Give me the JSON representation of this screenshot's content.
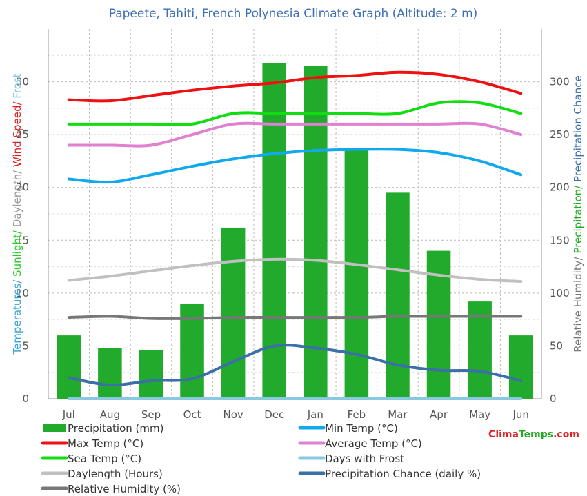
{
  "chart_data": {
    "type": "bar",
    "title": "Papeete, Tahiti, French Polynesia Climate Graph (Altitude: 2 m)",
    "categories": [
      "Jul",
      "Aug",
      "Sep",
      "Oct",
      "Nov",
      "Dec",
      "Jan",
      "Feb",
      "Mar",
      "Apr",
      "May",
      "Jun"
    ],
    "left_axis": {
      "label_parts": [
        {
          "text": "Temperatures/ ",
          "color": "#3aa3d8"
        },
        {
          "text": "Sunlight/ ",
          "color": "#22cc22"
        },
        {
          "text": "Daylength/ ",
          "color": "#999999"
        },
        {
          "text": "Wind Speed/ ",
          "color": "#dd2222"
        },
        {
          "text": "Frost",
          "color": "#88c8e0"
        }
      ],
      "ylim": [
        0,
        35
      ],
      "ticks": [
        0,
        5,
        10,
        15,
        20,
        25,
        30
      ]
    },
    "right_axis": {
      "label_parts": [
        {
          "text": "Relative Humidity/ ",
          "color": "#777777"
        },
        {
          "text": "Precipitation/ ",
          "color": "#22aa22"
        },
        {
          "text": "Precipitation Chance",
          "color": "#3a6fa8"
        }
      ],
      "ylim": [
        0,
        350
      ],
      "ticks": [
        0,
        50,
        100,
        150,
        200,
        250,
        300
      ]
    },
    "bars": {
      "name": "Precipitation (mm)",
      "color": "#22aa2c",
      "values": [
        60,
        48,
        46,
        90,
        162,
        318,
        315,
        235,
        195,
        140,
        92,
        60
      ]
    },
    "series": [
      {
        "name": "Max Temp (°C)",
        "color": "#ee1111",
        "axis": "left",
        "values": [
          28.3,
          28.2,
          28.7,
          29.2,
          29.6,
          29.9,
          30.4,
          30.6,
          30.9,
          30.7,
          30.0,
          28.9
        ]
      },
      {
        "name": "Sea Temp (°C)",
        "color": "#11dd11",
        "axis": "left",
        "values": [
          26,
          26,
          26,
          26,
          27,
          27,
          27,
          27,
          27,
          28,
          28,
          27
        ]
      },
      {
        "name": "Average Temp (°C)",
        "color": "#e080d0",
        "axis": "left",
        "values": [
          24,
          24,
          24,
          25,
          26,
          26,
          26,
          26,
          26,
          26,
          26,
          25
        ]
      },
      {
        "name": "Min Temp (°C)",
        "color": "#11a8ee",
        "axis": "left",
        "values": [
          20.8,
          20.5,
          21.2,
          22.0,
          22.7,
          23.2,
          23.5,
          23.6,
          23.6,
          23.3,
          22.5,
          21.2
        ]
      },
      {
        "name": "Daylength (Hours)",
        "color": "#c0c0c0",
        "axis": "left",
        "values": [
          11.2,
          11.6,
          12.1,
          12.6,
          13.0,
          13.2,
          13.1,
          12.7,
          12.2,
          11.7,
          11.3,
          11.1
        ]
      },
      {
        "name": "Relative Humidity (%)",
        "color": "#777777",
        "axis": "right",
        "values": [
          77,
          78,
          76,
          76,
          77,
          77,
          77,
          77,
          78,
          78,
          78,
          78
        ]
      },
      {
        "name": "Precipitation Chance (daily %)",
        "color": "#3a6fa8",
        "axis": "right",
        "values": [
          20,
          13,
          17,
          19,
          35,
          50,
          48,
          42,
          32,
          27,
          26,
          17
        ]
      },
      {
        "name": "Days with Frost",
        "color": "#88c8e0",
        "axis": "left",
        "values": [
          0,
          0,
          0,
          0,
          0,
          0,
          0,
          0,
          0,
          0,
          0,
          0
        ]
      }
    ],
    "legend": [
      {
        "label": "Precipitation (mm)",
        "color": "#22aa2c",
        "kind": "bar"
      },
      {
        "label": "Min Temp (°C)",
        "color": "#11a8ee",
        "kind": "line"
      },
      {
        "label": "Max Temp (°C)",
        "color": "#ee1111",
        "kind": "line"
      },
      {
        "label": "Average Temp (°C)",
        "color": "#e080d0",
        "kind": "line"
      },
      {
        "label": "Sea Temp (°C)",
        "color": "#11dd11",
        "kind": "line"
      },
      {
        "label": "Days with Frost",
        "color": "#88c8e0",
        "kind": "line"
      },
      {
        "label": "Daylength (Hours)",
        "color": "#c0c0c0",
        "kind": "line"
      },
      {
        "label": "Precipitation Chance (daily %)",
        "color": "#3a6fa8",
        "kind": "line"
      },
      {
        "label": "Relative Humidity (%)",
        "color": "#777777",
        "kind": "line"
      }
    ],
    "grid": true,
    "watermark": {
      "part1": "Clima",
      "part2": "Temps",
      "part3": ".com",
      "color1": "#dd2222",
      "color2": "#22aa22",
      "color3": "#dd2222"
    }
  }
}
